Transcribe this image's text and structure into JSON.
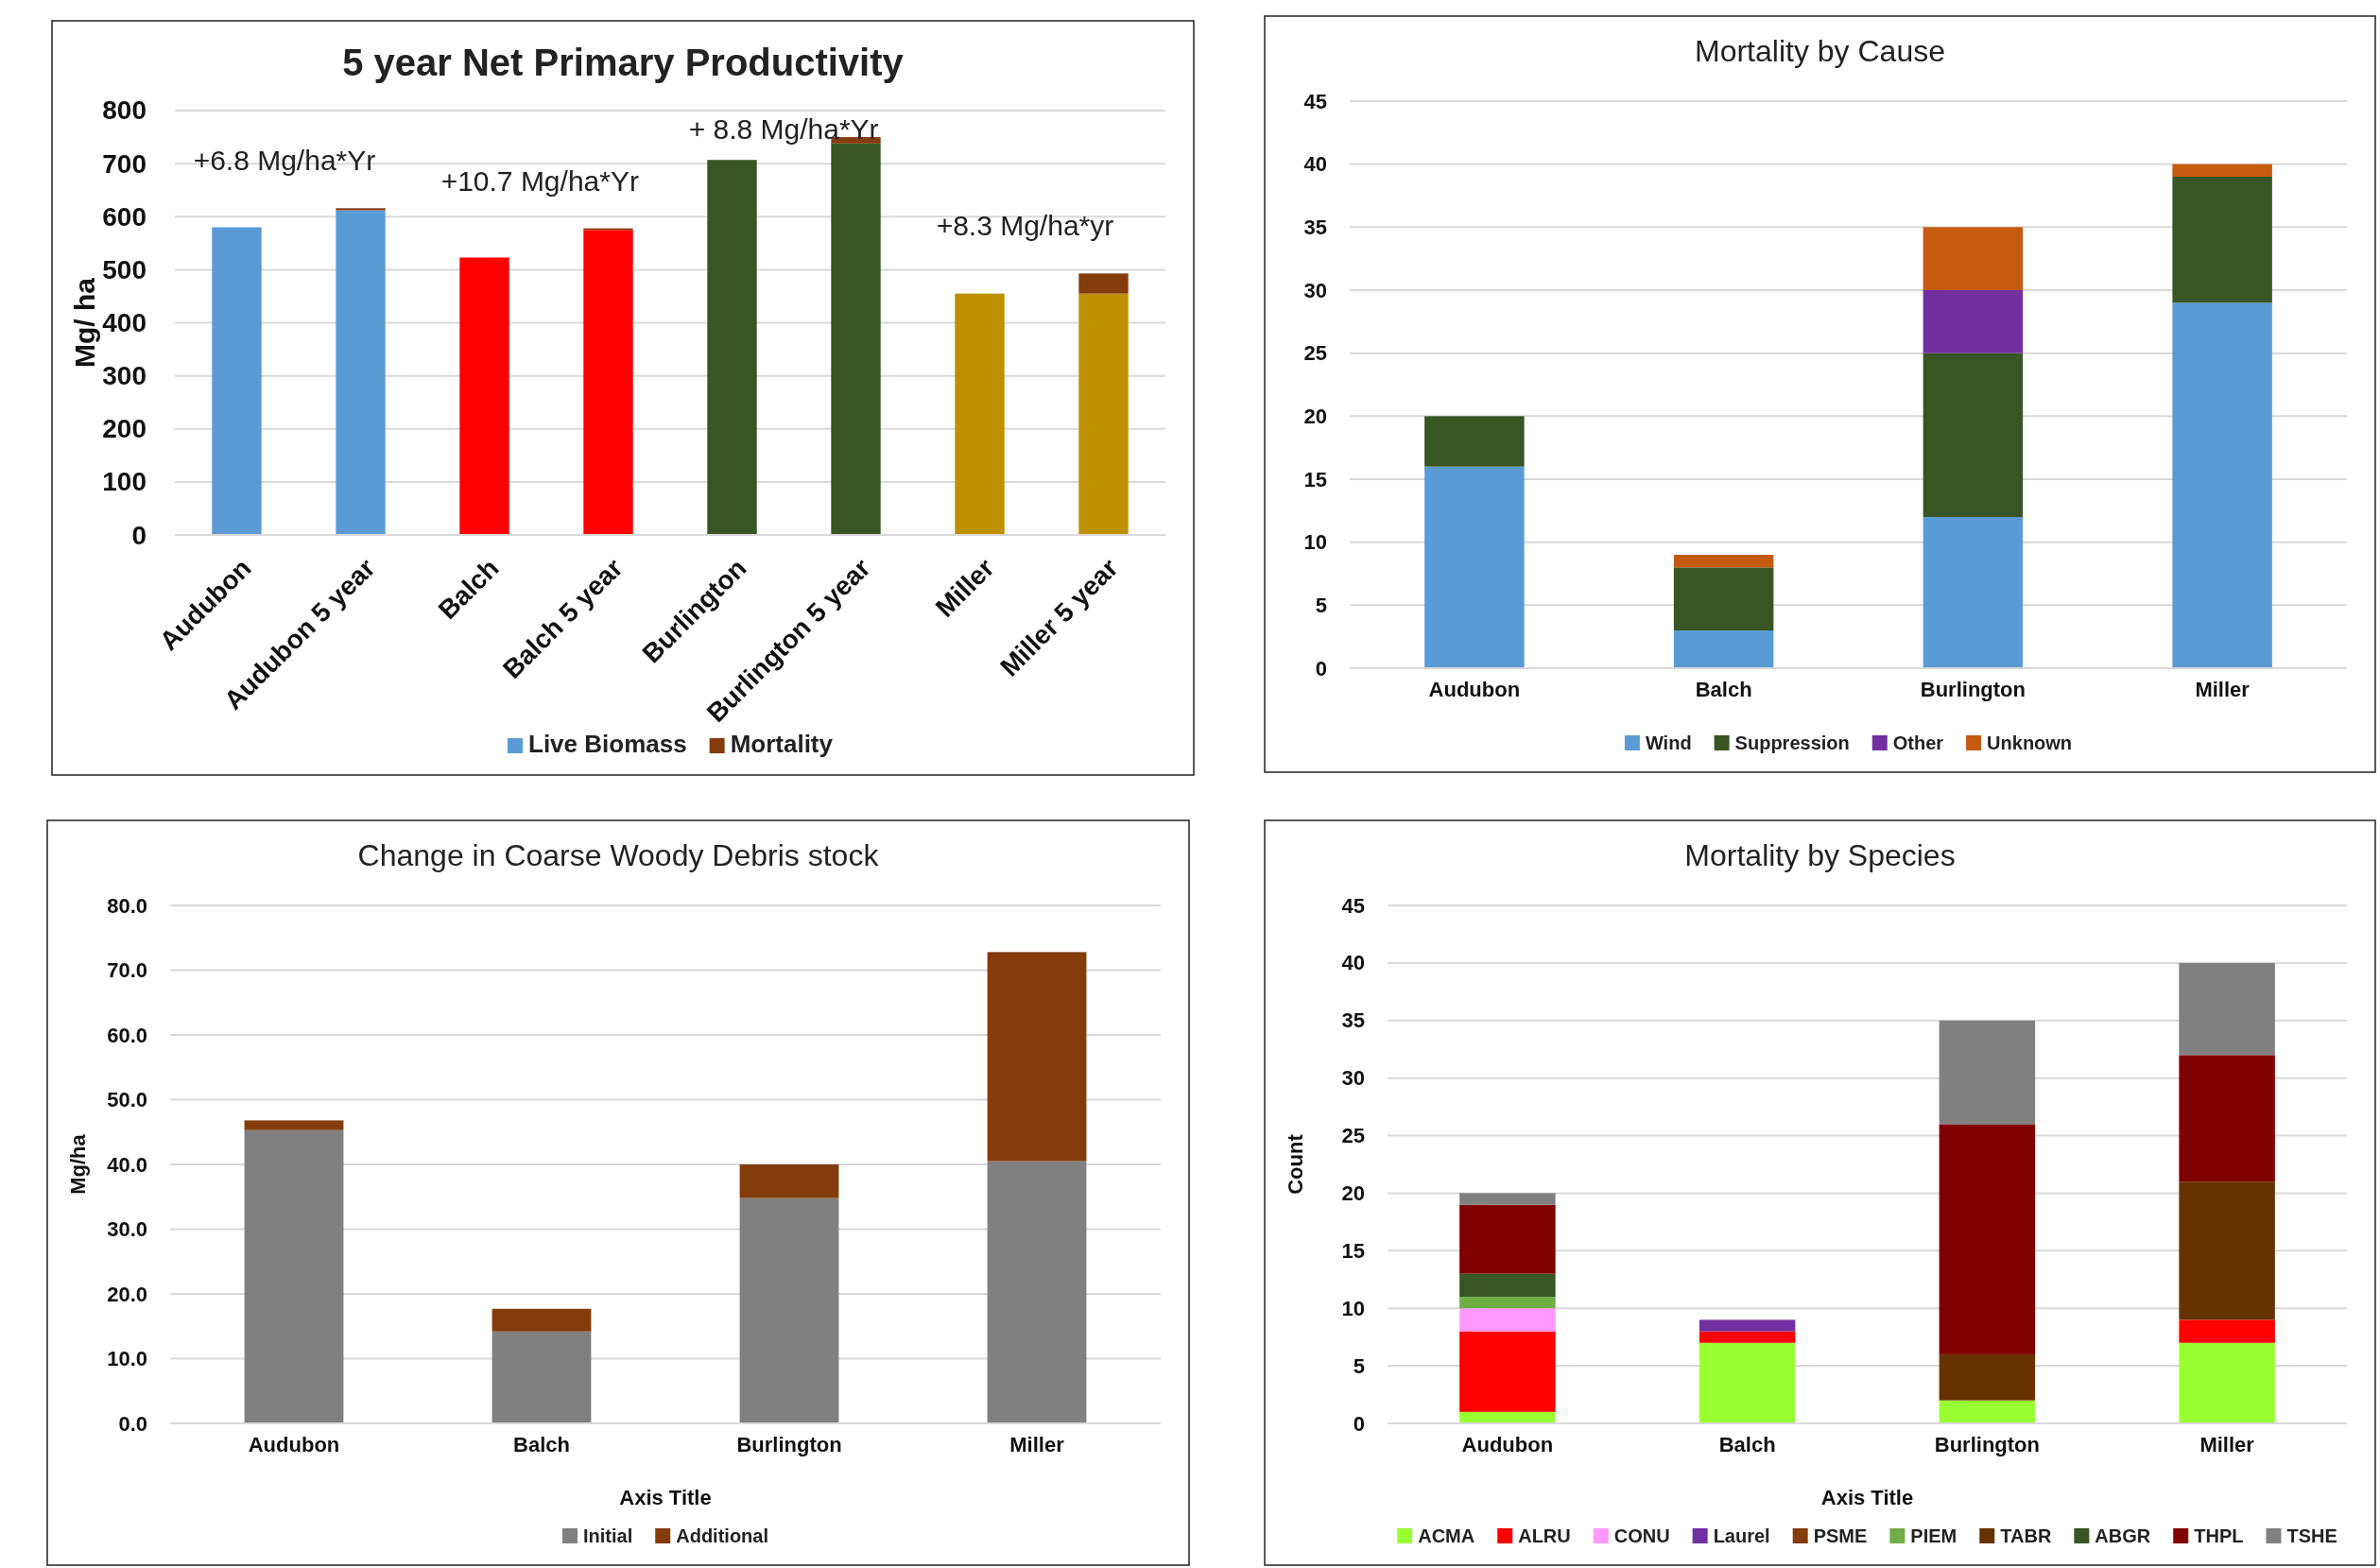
{
  "chart_data": [
    {
      "type": "bar",
      "title": "5 year Net Primary Productivity",
      "ylabel": "Mg/ ha",
      "categories": [
        "Audubon",
        "Audubon 5 year",
        "Balch",
        "Balch 5 year",
        "Burlington",
        "Burlington 5 year",
        "Miller",
        "Miller 5 year"
      ],
      "stacked": true,
      "series": [
        {
          "name": "Live Biomass",
          "color": "#5b9bd5",
          "colors": [
            "#5b9bd5",
            "#5b9bd5",
            "#ff0000",
            "#ff0000",
            "#375623",
            "#375623",
            "#bf9000",
            "#bf9000"
          ],
          "values": [
            580,
            612,
            523,
            575,
            707,
            738,
            455,
            455
          ]
        },
        {
          "name": "Mortality",
          "color": "#843c0c",
          "values": [
            0,
            4,
            0,
            3,
            0,
            12,
            0,
            38
          ]
        }
      ],
      "ylim": [
        0,
        800
      ],
      "yticks": [
        0,
        100,
        200,
        300,
        400,
        500,
        600,
        700,
        800
      ],
      "grid": "y",
      "legend": "bottom",
      "annotations": [
        "+6.8 Mg/ha*Yr",
        "+10.7 Mg/ha*Yr",
        "+ 8.8 Mg/ha*Yr",
        "+8.3 Mg/ha*yr"
      ]
    },
    {
      "type": "bar",
      "title": "Mortality by Cause",
      "categories": [
        "Audubon",
        "Balch",
        "Burlington",
        "Miller"
      ],
      "stacked": true,
      "series": [
        {
          "name": "Wind",
          "color": "#5b9bd5",
          "values": [
            16,
            3,
            12,
            29
          ]
        },
        {
          "name": "Suppression",
          "color": "#375623",
          "values": [
            4,
            5,
            13,
            10
          ]
        },
        {
          "name": "Other",
          "color": "#7030a0",
          "values": [
            0,
            0,
            5,
            0
          ]
        },
        {
          "name": "Unknown",
          "color": "#c55a11",
          "values": [
            0,
            1,
            5,
            1
          ]
        }
      ],
      "ylim": [
        0,
        45
      ],
      "yticks": [
        0,
        5,
        10,
        15,
        20,
        25,
        30,
        35,
        40,
        45
      ],
      "grid": "y",
      "legend": "bottom"
    },
    {
      "type": "bar",
      "title": "Change in Coarse Woody Debris stock",
      "xlabel": "Axis Title",
      "ylabel": "Mg/ha",
      "categories": [
        "Audubon",
        "Balch",
        "Burlington",
        "Miller"
      ],
      "stacked": true,
      "series": [
        {
          "name": "Initial",
          "color": "#808080",
          "values": [
            45.3,
            14.2,
            34.8,
            40.5
          ]
        },
        {
          "name": "Additional",
          "color": "#843c0c",
          "values": [
            1.5,
            3.5,
            5.2,
            32.3
          ]
        }
      ],
      "ylim": [
        0,
        80
      ],
      "yticks": [
        {
          "value": 0,
          "label": "0.0"
        },
        {
          "value": 10,
          "label": "10.0"
        },
        {
          "value": 20,
          "label": "20.0"
        },
        {
          "value": 30,
          "label": "30.0"
        },
        {
          "value": 40,
          "label": "40.0"
        },
        {
          "value": 50,
          "label": "50.0"
        },
        {
          "value": 60,
          "label": "60.0"
        },
        {
          "value": 70,
          "label": "70.0"
        },
        {
          "value": 80,
          "label": "80.0"
        }
      ],
      "grid": "y",
      "legend": "bottom"
    },
    {
      "type": "bar",
      "title": "Mortality by Species",
      "xlabel": "Axis Title",
      "ylabel": "Count",
      "categories": [
        "Audubon",
        "Balch",
        "Burlington",
        "Miller"
      ],
      "stacked": true,
      "series": [
        {
          "name": "ACMA",
          "color": "#99ff33",
          "values": [
            1,
            7,
            2,
            7
          ]
        },
        {
          "name": "ALRU",
          "color": "#ff0000",
          "values": [
            7,
            1,
            0,
            2
          ]
        },
        {
          "name": "CONU",
          "color": "#ff99ff",
          "values": [
            2,
            0,
            0,
            0
          ]
        },
        {
          "name": "Laurel",
          "color": "#7030a0",
          "values": [
            0,
            1,
            0,
            0
          ]
        },
        {
          "name": "PSME",
          "color": "#843c0c",
          "values": [
            0,
            0,
            0,
            0
          ]
        },
        {
          "name": "PIEM",
          "color": "#70ad47",
          "values": [
            1,
            0,
            0,
            0
          ]
        },
        {
          "name": "TABR",
          "color": "#663300",
          "values": [
            0,
            0,
            4,
            12
          ]
        },
        {
          "name": "ABGR",
          "color": "#375623",
          "values": [
            2,
            0,
            0,
            0
          ]
        },
        {
          "name": "THPL",
          "color": "#800000",
          "values": [
            6,
            0,
            20,
            11
          ]
        },
        {
          "name": "TSHE",
          "color": "#808080",
          "values": [
            1,
            0,
            9,
            8
          ]
        }
      ],
      "ylim": [
        0,
        45
      ],
      "yticks": [
        0,
        5,
        10,
        15,
        20,
        25,
        30,
        35,
        40,
        45
      ],
      "grid": "y",
      "legend": "bottom"
    }
  ]
}
